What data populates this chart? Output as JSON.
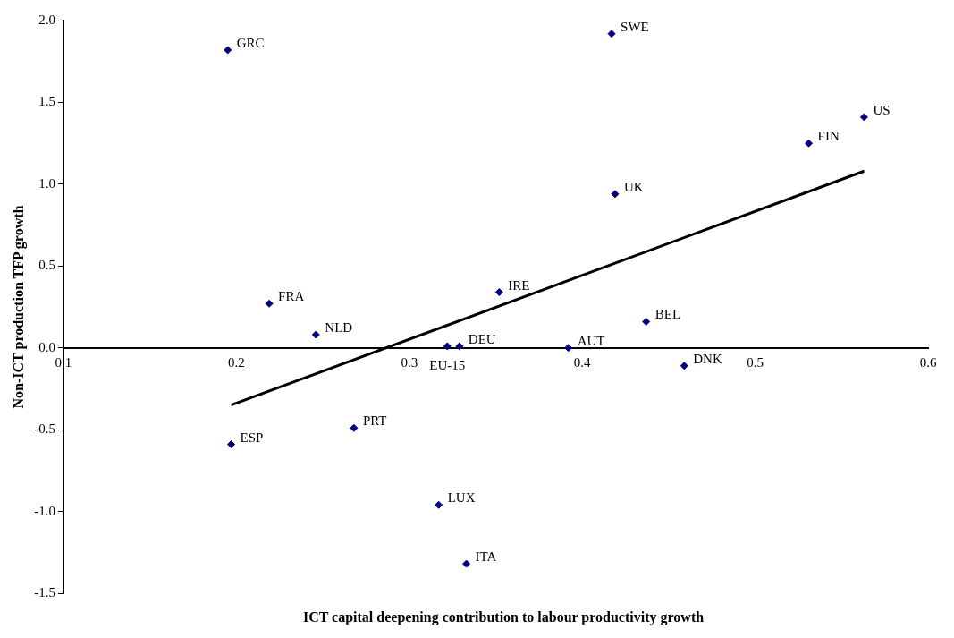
{
  "chart_data": {
    "type": "scatter",
    "xlabel": "ICT capital deepening contribution to labour productivity growth",
    "ylabel": "Non-ICT production TFP growth",
    "series": [
      {
        "type": "scatter",
        "color": "#000080",
        "x": [
          0.417,
          0.195,
          0.563,
          0.531,
          0.419,
          0.352,
          0.219,
          0.437,
          0.246,
          0.322,
          0.329,
          0.392,
          0.459,
          0.268,
          0.197,
          0.317,
          0.333
        ],
        "values": [
          1.92,
          1.82,
          1.41,
          1.25,
          0.94,
          0.34,
          0.27,
          0.16,
          0.08,
          0.01,
          0.01,
          0.0,
          -0.11,
          -0.49,
          -0.59,
          -0.96,
          -1.32
        ],
        "marker": "diamond"
      },
      {
        "type": "line",
        "color": "#000000",
        "x": [
          0.197,
          0.563
        ],
        "values": [
          -0.35,
          1.08
        ],
        "marker": "none"
      }
    ],
    "annotations": [
      {
        "text": "SWE",
        "x": 0.417,
        "y": 1.92
      },
      {
        "text": "GRC",
        "x": 0.195,
        "y": 1.82
      },
      {
        "text": "US",
        "x": 0.563,
        "y": 1.41
      },
      {
        "text": "FIN",
        "x": 0.531,
        "y": 1.25
      },
      {
        "text": "UK",
        "x": 0.419,
        "y": 0.94
      },
      {
        "text": "IRE",
        "x": 0.352,
        "y": 0.34
      },
      {
        "text": "FRA",
        "x": 0.219,
        "y": 0.27
      },
      {
        "text": "BEL",
        "x": 0.437,
        "y": 0.16
      },
      {
        "text": "NLD",
        "x": 0.246,
        "y": 0.08
      },
      {
        "text": "EU-15",
        "x": 0.322,
        "y": 0.01
      },
      {
        "text": "DEU",
        "x": 0.329,
        "y": 0.01
      },
      {
        "text": "AUT",
        "x": 0.392,
        "y": 0.0
      },
      {
        "text": "DNK",
        "x": 0.459,
        "y": -0.11
      },
      {
        "text": "PRT",
        "x": 0.268,
        "y": -0.49
      },
      {
        "text": "ESP",
        "x": 0.197,
        "y": -0.59
      },
      {
        "text": "LUX",
        "x": 0.317,
        "y": -0.96
      },
      {
        "text": "ITA",
        "x": 0.333,
        "y": -1.32
      }
    ],
    "xlim": [
      0.1,
      0.6
    ],
    "xticks": [
      0.1,
      0.2,
      0.3,
      0.4,
      0.5,
      0.6
    ],
    "ylim": [
      -1.5,
      2.0
    ],
    "yticks": [
      -1.5,
      {
        "value": -1,
        "label": "-1.0"
      },
      -0.5,
      {
        "value": 0,
        "label": "0.0"
      },
      0.5,
      {
        "value": 1,
        "label": "1.0"
      },
      1.5,
      {
        "value": 2,
        "label": "2.0"
      }
    ],
    "grid": false,
    "legend": false
  }
}
